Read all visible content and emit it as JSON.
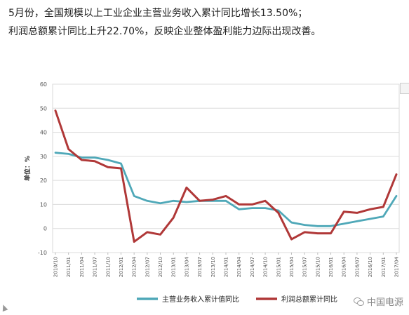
{
  "headline": {
    "line1": "5月份，全国规模以上工业企业主营业务收入累计同比增长13.50%；",
    "line2": "利润总额累计同比上升22.70%，反映企业整体盈利能力边际出现改善。"
  },
  "watermark": {
    "text": "中国电源",
    "icon": "wechat-icon"
  },
  "chart_data": {
    "type": "line",
    "ylabel": "单位：%",
    "ylim": [
      -10,
      60
    ],
    "yticks": [
      -10,
      0,
      10,
      20,
      30,
      40,
      50,
      60
    ],
    "ytick_labels": [
      "-10",
      "0",
      "10",
      "20",
      "30",
      "40",
      "50",
      "60"
    ],
    "grid": true,
    "legend_position": "bottom",
    "x": [
      "2010/10",
      "2011/01",
      "2011/04",
      "2011/07",
      "2011/10",
      "2012/01",
      "2012/04",
      "2012/07",
      "2012/10",
      "2013/01",
      "2013/04",
      "2013/07",
      "2013/10",
      "2014/01",
      "2014/04",
      "2014/07",
      "2014/10",
      "2015/01",
      "2015/04",
      "2015/07",
      "2015/10",
      "2016/01",
      "2016/04",
      "2016/07",
      "2016/10",
      "2017/01",
      "2017/04"
    ],
    "xtick_labels": [
      "2010/10",
      "2011/01",
      "2011/04",
      "2011/07",
      "2011/10",
      "2012/01",
      "2012/04",
      "2012/07",
      "2012/10",
      "2013/01",
      "2013/04",
      "2013/07",
      "2013/10",
      "2014/01",
      "2014/04",
      "2014/07",
      "2014/10",
      "2015/01",
      "2015/04",
      "2015/07",
      "2015/10",
      "2016/01",
      "2016/04",
      "2016/07",
      "2016/10",
      "2017/01",
      "2017/04"
    ],
    "series": [
      {
        "name": "主营业务收入累计值同比",
        "color": "#4fa8b8",
        "values": [
          31.5,
          31.0,
          29.5,
          29.5,
          28.5,
          27.0,
          13.5,
          11.5,
          10.5,
          11.5,
          11.0,
          11.5,
          11.5,
          11.5,
          8.0,
          8.5,
          8.5,
          7.5,
          2.5,
          1.5,
          1.0,
          1.0,
          2.0,
          3.0,
          4.0,
          5.0,
          13.5
        ]
      },
      {
        "name": "利润总额累计同比",
        "color": "#b03838",
        "values": [
          49.0,
          33.0,
          28.5,
          28.0,
          25.5,
          25.0,
          -5.5,
          -1.5,
          -2.5,
          4.5,
          17.0,
          11.5,
          12.0,
          13.5,
          10.0,
          10.0,
          11.5,
          6.5,
          -4.5,
          -1.5,
          -2.0,
          -2.0,
          7.0,
          6.5,
          8.0,
          9.0,
          22.5
        ]
      }
    ]
  }
}
